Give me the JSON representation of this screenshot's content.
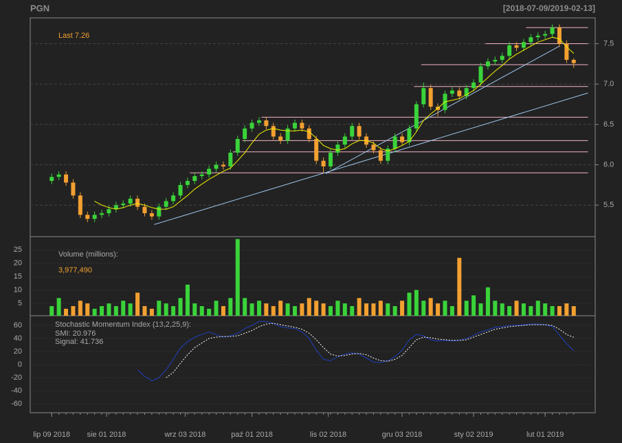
{
  "title": "PGN",
  "date_range": "[2018-07-09/2019-02-13]",
  "chart_data": [
    {
      "type": "candlestick",
      "last_label": "Last 7.26",
      "up_color": "#3ad33a",
      "down_color": "#f2a031",
      "x": [
        "2018-07-09",
        "2018-07-12",
        "2018-07-15",
        "2018-07-18",
        "2018-07-21",
        "2018-07-24",
        "2018-07-27",
        "2018-07-30",
        "2018-08-02",
        "2018-08-05",
        "2018-08-08",
        "2018-08-11",
        "2018-08-14",
        "2018-08-17",
        "2018-08-20",
        "2018-08-23",
        "2018-08-26",
        "2018-08-29",
        "2018-09-01",
        "2018-09-04",
        "2018-09-07",
        "2018-09-10",
        "2018-09-13",
        "2018-09-16",
        "2018-09-19",
        "2018-09-22",
        "2018-09-25",
        "2018-09-28",
        "2018-10-01",
        "2018-10-04",
        "2018-10-07",
        "2018-10-10",
        "2018-10-13",
        "2018-10-16",
        "2018-10-19",
        "2018-10-22",
        "2018-10-25",
        "2018-10-28",
        "2018-10-31",
        "2018-11-03",
        "2018-11-06",
        "2018-11-09",
        "2018-11-12",
        "2018-11-15",
        "2018-11-18",
        "2018-11-21",
        "2018-11-24",
        "2018-11-27",
        "2018-11-30",
        "2018-12-03",
        "2018-12-06",
        "2018-12-09",
        "2018-12-12",
        "2018-12-15",
        "2018-12-18",
        "2018-12-21",
        "2018-12-24",
        "2018-12-27",
        "2018-12-30",
        "2019-01-02",
        "2019-01-05",
        "2019-01-08",
        "2019-01-11",
        "2019-01-14",
        "2019-01-17",
        "2019-01-20",
        "2019-01-23",
        "2019-01-26",
        "2019-01-29",
        "2019-02-01",
        "2019-02-04",
        "2019-02-07",
        "2019-02-10",
        "2019-02-13"
      ],
      "open": [
        5.8,
        5.85,
        5.88,
        5.78,
        5.62,
        5.38,
        5.33,
        5.38,
        5.4,
        5.45,
        5.5,
        5.52,
        5.58,
        5.48,
        5.4,
        5.36,
        5.48,
        5.55,
        5.62,
        5.75,
        5.8,
        5.86,
        5.88,
        5.95,
        6.0,
        5.98,
        6.15,
        6.32,
        6.45,
        6.52,
        6.55,
        6.48,
        6.35,
        6.3,
        6.45,
        6.52,
        6.45,
        6.32,
        6.05,
        5.98,
        6.15,
        6.25,
        6.35,
        6.48,
        6.35,
        6.25,
        6.18,
        6.05,
        6.2,
        6.35,
        6.28,
        6.45,
        6.75,
        6.95,
        6.72,
        6.68,
        6.88,
        6.92,
        6.85,
        6.95,
        7.02,
        7.22,
        7.28,
        7.3,
        7.35,
        7.48,
        7.45,
        7.52,
        7.58,
        7.6,
        7.62,
        7.7,
        7.5,
        7.3
      ],
      "high": [
        5.89,
        5.92,
        5.92,
        5.82,
        5.66,
        5.42,
        5.42,
        5.44,
        5.49,
        5.54,
        5.56,
        5.62,
        5.62,
        5.52,
        5.44,
        5.52,
        5.59,
        5.66,
        5.79,
        5.84,
        5.9,
        5.92,
        5.99,
        6.04,
        6.04,
        6.19,
        6.36,
        6.49,
        6.56,
        6.59,
        6.59,
        6.52,
        6.39,
        6.49,
        6.56,
        6.56,
        6.49,
        6.36,
        6.09,
        6.19,
        6.29,
        6.39,
        6.52,
        6.52,
        6.39,
        6.29,
        6.22,
        6.24,
        6.39,
        6.39,
        6.49,
        6.79,
        7.02,
        6.99,
        6.76,
        6.92,
        6.96,
        6.96,
        6.99,
        7.06,
        7.26,
        7.32,
        7.34,
        7.39,
        7.52,
        7.52,
        7.56,
        7.62,
        7.64,
        7.66,
        7.74,
        7.74,
        7.54,
        7.32
      ],
      "low": [
        5.76,
        5.81,
        5.74,
        5.58,
        5.34,
        5.29,
        5.29,
        5.34,
        5.36,
        5.41,
        5.46,
        5.48,
        5.44,
        5.36,
        5.32,
        5.32,
        5.44,
        5.51,
        5.58,
        5.71,
        5.76,
        5.82,
        5.84,
        5.91,
        5.94,
        5.94,
        6.11,
        6.28,
        6.41,
        6.48,
        6.44,
        6.31,
        6.26,
        6.26,
        6.41,
        6.41,
        6.28,
        6.01,
        5.9,
        5.94,
        6.11,
        6.21,
        6.31,
        6.31,
        6.21,
        6.14,
        6.01,
        6.01,
        6.16,
        6.24,
        6.24,
        6.41,
        6.71,
        6.68,
        6.6,
        6.64,
        6.84,
        6.81,
        6.81,
        6.91,
        6.98,
        7.18,
        7.24,
        7.26,
        7.31,
        7.41,
        7.41,
        7.48,
        7.54,
        7.56,
        7.58,
        7.46,
        7.26,
        7.2
      ],
      "close": [
        5.85,
        5.88,
        5.78,
        5.62,
        5.38,
        5.33,
        5.38,
        5.4,
        5.45,
        5.5,
        5.52,
        5.58,
        5.48,
        5.4,
        5.36,
        5.48,
        5.55,
        5.62,
        5.75,
        5.8,
        5.86,
        5.88,
        5.95,
        6.0,
        5.98,
        6.15,
        6.32,
        6.45,
        6.52,
        6.55,
        6.48,
        6.35,
        6.3,
        6.45,
        6.52,
        6.45,
        6.32,
        6.05,
        5.98,
        6.15,
        6.25,
        6.35,
        6.48,
        6.35,
        6.25,
        6.18,
        6.05,
        6.2,
        6.35,
        6.28,
        6.45,
        6.75,
        6.95,
        6.72,
        6.68,
        6.88,
        6.92,
        6.85,
        6.95,
        7.02,
        7.22,
        7.28,
        7.3,
        7.35,
        7.48,
        7.45,
        7.52,
        7.58,
        7.6,
        7.62,
        7.7,
        7.5,
        7.3,
        7.26
      ],
      "sma": {
        "color": "#f2f200",
        "values": [
          null,
          null,
          null,
          null,
          null,
          null,
          5.55,
          5.5,
          5.47,
          5.45,
          5.47,
          5.5,
          5.52,
          5.5,
          5.47,
          5.45,
          5.45,
          5.48,
          5.55,
          5.62,
          5.7,
          5.76,
          5.82,
          5.87,
          5.92,
          5.96,
          6.05,
          6.15,
          6.27,
          6.38,
          6.43,
          6.45,
          6.43,
          6.42,
          6.42,
          6.43,
          6.41,
          6.33,
          6.24,
          6.2,
          6.18,
          6.2,
          6.26,
          6.3,
          6.3,
          6.27,
          6.2,
          6.17,
          6.2,
          6.24,
          6.29,
          6.41,
          6.55,
          6.63,
          6.7,
          6.78,
          6.8,
          6.82,
          6.87,
          6.92,
          7.0,
          7.08,
          7.16,
          7.23,
          7.31,
          7.37,
          7.42,
          7.47,
          7.52,
          7.55,
          7.58,
          7.56,
          7.46,
          7.38
        ]
      },
      "trendlines": [
        {
          "color": "#9cc3ea",
          "x": [
            "2018-08-21",
            "2019-02-19"
          ],
          "y": [
            5.26,
            6.89
          ]
        },
        {
          "color": "#9cc3ea",
          "x": [
            "2018-11-01",
            "2019-02-07"
          ],
          "y": [
            5.89,
            7.47
          ]
        }
      ],
      "levels": [
        {
          "color": "#f6b6c6",
          "x": [
            "2019-01-24",
            "2019-02-19"
          ],
          "value": 7.7
        },
        {
          "color": "#f6b6c6",
          "x": [
            "2019-01-07",
            "2019-02-19"
          ],
          "value": 7.5
        },
        {
          "color": "#f6b6c6",
          "x": [
            "2018-12-11",
            "2019-02-19"
          ],
          "value": 7.24
        },
        {
          "color": "#f6b6c6",
          "x": [
            "2018-12-08",
            "2019-02-19"
          ],
          "value": 6.97
        },
        {
          "color": "#f6b6c6",
          "x": [
            "2018-10-05",
            "2019-02-19"
          ],
          "value": 6.59
        },
        {
          "color": "#f6b6c6",
          "x": [
            "2018-09-27",
            "2019-02-19"
          ],
          "value": 6.3
        },
        {
          "color": "#f6b6c6",
          "x": [
            "2018-09-23",
            "2019-02-19"
          ],
          "value": 6.16
        },
        {
          "color": "#f6b6c6",
          "x": [
            "2018-09-05",
            "2019-02-19"
          ],
          "value": 5.9
        }
      ],
      "xlim": [
        "2018-06-30",
        "2019-02-22"
      ],
      "xticks": [
        {
          "value": "2018-07-09",
          "label": "lip 09 2018"
        },
        {
          "value": "2018-08-01",
          "label": "sie 01 2018"
        },
        {
          "value": "2018-09-03",
          "label": "wrz 03 2018"
        },
        {
          "value": "2018-10-01",
          "label": "paź 01 2018"
        },
        {
          "value": "2018-11-02",
          "label": "lis 02 2018"
        },
        {
          "value": "2018-12-03",
          "label": "gru 03 2018"
        },
        {
          "value": "2019-01-02",
          "label": "sty 02 2019"
        },
        {
          "value": "2019-02-01",
          "label": "lut 01 2019"
        }
      ],
      "ylim": [
        5.11,
        7.82
      ],
      "yticks": [
        5.5,
        {
          "value": 6,
          "label": "6.0"
        },
        6.5,
        {
          "value": 7,
          "label": "7.0"
        },
        7.5
      ],
      "grid": true
    },
    {
      "type": "bar",
      "title": "Volume (millions):",
      "last_label": "3,977,490",
      "values": [
        4,
        7,
        3,
        4,
        6,
        5,
        3,
        4,
        5,
        4,
        6,
        5,
        9,
        4,
        3,
        6,
        5,
        4,
        7,
        12,
        5,
        4,
        3,
        6,
        4,
        7,
        29,
        7,
        5,
        6,
        5,
        4,
        6,
        5,
        4,
        5,
        7,
        6,
        5,
        4,
        6,
        5,
        4,
        7,
        5,
        5,
        6,
        5,
        4,
        6,
        9,
        10,
        6,
        7,
        5,
        6,
        4,
        22,
        6,
        8,
        5,
        11,
        6,
        5,
        4,
        6,
        5,
        4,
        6,
        5,
        4,
        4,
        5,
        3.97749
      ],
      "ylim": [
        0.4,
        29.9
      ],
      "yticks": [
        5,
        10,
        15,
        20,
        25
      ],
      "grid": true
    },
    {
      "type": "line",
      "title": "Stochastic Momentum Index (13,2,25,9):",
      "series": [
        {
          "name": "SMI: 20.976",
          "color": "#1f3fbf",
          "dash": false,
          "values": [
            null,
            null,
            null,
            null,
            null,
            null,
            null,
            null,
            null,
            null,
            null,
            null,
            -8,
            -18,
            -25,
            -20,
            -8,
            8,
            25,
            35,
            42,
            46,
            50,
            46,
            42,
            44,
            48,
            55,
            60,
            66,
            66,
            63,
            58,
            56,
            55,
            50,
            40,
            22,
            8,
            6,
            12,
            16,
            18,
            16,
            10,
            4,
            3,
            6,
            12,
            22,
            38,
            46,
            44,
            38,
            36,
            37,
            36,
            37,
            40,
            45,
            50,
            53,
            57,
            58,
            60,
            60,
            61,
            62,
            62,
            61,
            58,
            45,
            32,
            20.976
          ]
        },
        {
          "name": "Signal: 41.736",
          "color": "#ffffff",
          "dash": true,
          "values": [
            null,
            null,
            null,
            null,
            null,
            null,
            null,
            null,
            null,
            null,
            null,
            null,
            null,
            null,
            null,
            null,
            -20,
            -12,
            2,
            15,
            26,
            33,
            40,
            42,
            43,
            43,
            44,
            48,
            52,
            58,
            62,
            63,
            61,
            59,
            57,
            54,
            48,
            38,
            26,
            16,
            13,
            14,
            16,
            17,
            15,
            10,
            6,
            5,
            8,
            14,
            26,
            38,
            42,
            41,
            39,
            38,
            37,
            37,
            38,
            42,
            46,
            50,
            54,
            56,
            58,
            59,
            60,
            61,
            61,
            61,
            60,
            54,
            46,
            41.736
          ]
        }
      ],
      "ylim": [
        -73.7,
        74.7
      ],
      "yticks": [
        -60,
        -40,
        -20,
        0,
        20,
        40,
        60
      ],
      "grid": true
    }
  ]
}
